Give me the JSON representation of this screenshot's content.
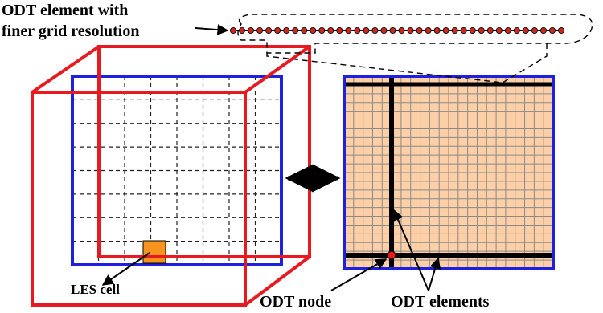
{
  "labels": {
    "finer_line1": "ODT element with",
    "finer_line2": "finer grid resolution",
    "les_cell": "LES cell",
    "odt_node": "ODT node",
    "odt_elements": "ODT elements"
  },
  "colors": {
    "cube_edge": "#e8191f",
    "face_border": "#1f1fe0",
    "grid_dashed": "#222222",
    "les_cell_fill": "#f7941d",
    "panel_fill": "#fccfa6",
    "panel_grid": "#8a8a8a",
    "odt_line": "#000000",
    "odt_node": "#e8191f",
    "bead_fill": "#c9281e"
  },
  "grid": {
    "cube_divisions": 8,
    "panel_divisions": 22,
    "bead_count": 38
  }
}
